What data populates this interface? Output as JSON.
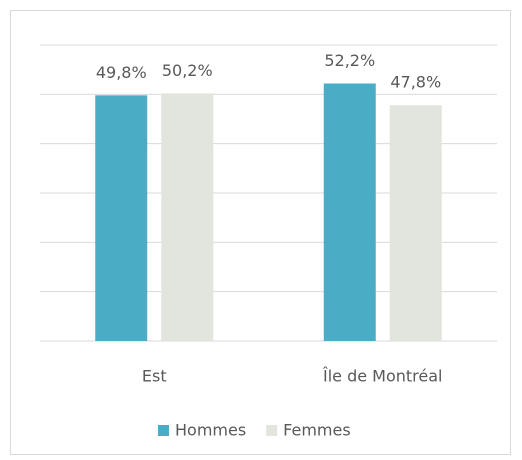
{
  "chart_data": {
    "type": "bar",
    "categories": [
      "Est",
      "Île de Montréal"
    ],
    "series": [
      {
        "name": "Hommes",
        "color": "#4bacc6",
        "values": [
          49.8,
          52.2
        ],
        "value_labels": [
          "49,8%",
          "52,2%"
        ]
      },
      {
        "name": "Femmes",
        "color": "#e2e5de",
        "values": [
          50.2,
          47.8
        ],
        "value_labels": [
          "50,2%",
          "47,8%"
        ]
      }
    ],
    "ylim": [
      0,
      60
    ],
    "yticks": [
      0,
      10,
      20,
      30,
      40,
      50,
      60
    ],
    "grid": true,
    "legend": "bottom"
  }
}
